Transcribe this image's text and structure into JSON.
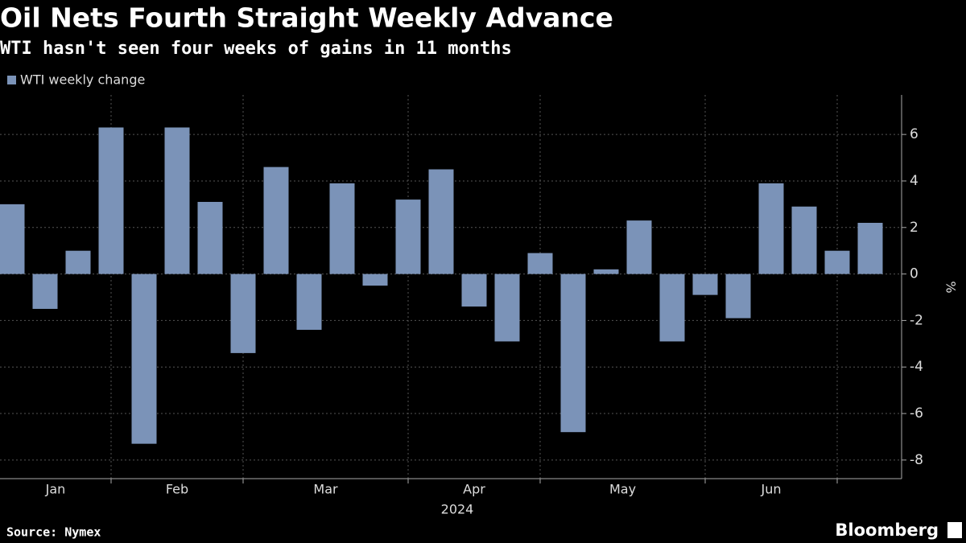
{
  "chart_data": {
    "type": "bar",
    "title": "Oil Nets Fourth Straight Weekly Advance",
    "subtitle": "WTI hasn't seen four weeks of gains in 11 months",
    "categories": [
      "Jan",
      null,
      null,
      "Feb",
      null,
      null,
      null,
      "Mar",
      null,
      null,
      null,
      null,
      "Apr",
      null,
      null,
      null,
      "May",
      null,
      null,
      null,
      null,
      "Jun",
      null,
      null,
      null,
      null,
      null
    ],
    "xticks": [
      3,
      7,
      12,
      16,
      21,
      25
    ],
    "xlabel": "2024",
    "series": [
      {
        "name": "WTI weekly change",
        "color": "#7b93b8",
        "values": [
          3.0,
          -1.5,
          1.0,
          6.3,
          -7.3,
          6.3,
          3.1,
          -3.4,
          4.6,
          -2.4,
          3.9,
          -0.5,
          3.2,
          4.5,
          -1.4,
          -2.9,
          0.9,
          -6.8,
          0.2,
          2.3,
          -2.9,
          -0.9,
          -1.9,
          3.9,
          2.9,
          1.0,
          2.2
        ]
      }
    ],
    "ylabel": "%",
    "ylim": [
      -8.8,
      7.7
    ],
    "yticks": [
      -8,
      -6,
      -4,
      -2,
      0,
      2,
      4,
      6
    ],
    "grid": true,
    "legend": "top-left",
    "source": "Source: Nymex",
    "brand": "Bloomberg"
  }
}
